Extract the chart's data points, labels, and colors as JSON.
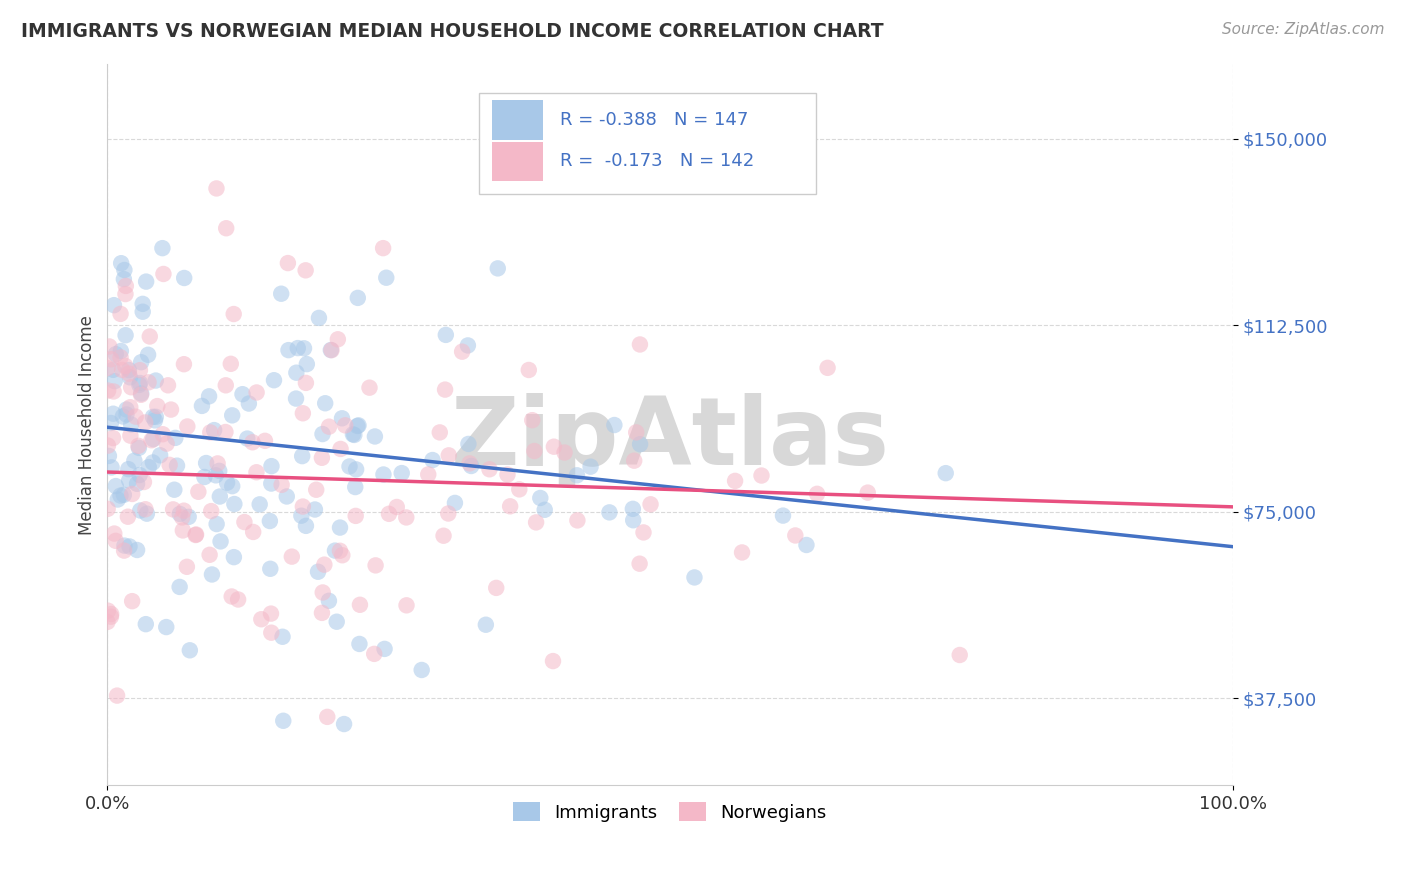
{
  "title": "IMMIGRANTS VS NORWEGIAN MEDIAN HOUSEHOLD INCOME CORRELATION CHART",
  "source": "Source: ZipAtlas.com",
  "ylabel": "Median Household Income",
  "xlim": [
    0,
    1
  ],
  "ylim": [
    20000,
    165000
  ],
  "yticks": [
    37500,
    75000,
    112500,
    150000
  ],
  "ytick_labels": [
    "$37,500",
    "$75,000",
    "$112,500",
    "$150,000"
  ],
  "xtick_labels": [
    "0.0%",
    "100.0%"
  ],
  "legend_r_immigrants": "-0.388",
  "legend_n_immigrants": "147",
  "legend_r_norwegians": "-0.173",
  "legend_n_norwegians": "142",
  "color_immigrants": "#a8c8e8",
  "color_norwegians": "#f4b8c8",
  "color_line_immigrants": "#4472c4",
  "color_line_norwegians": "#e85080",
  "color_title": "#333333",
  "color_ytick_labels": "#4472c4",
  "color_source": "#999999",
  "watermark_text": "ZipAtlas",
  "watermark_color": "#d8d8d8",
  "background_color": "#ffffff",
  "grid_color": "#d0d0d0",
  "scatter_size": 140,
  "scatter_alpha": 0.55,
  "imm_seed": 77,
  "nor_seed": 88,
  "imm_line_y0": 92000,
  "imm_line_y1": 68000,
  "nor_line_y0": 83000,
  "nor_line_y1": 76000
}
